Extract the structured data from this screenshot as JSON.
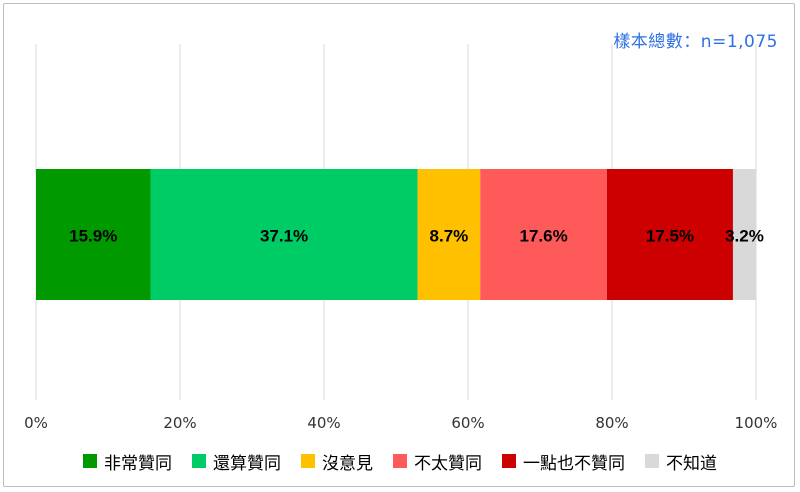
{
  "sample_note": "樣本總數：n=1,075",
  "chart_data": {
    "type": "bar",
    "orientation": "horizontal-stacked-100",
    "xlim": [
      0,
      100
    ],
    "x_ticks": [
      "0%",
      "20%",
      "40%",
      "60%",
      "80%",
      "100%"
    ],
    "grid": true,
    "legend_position": "bottom",
    "series": [
      {
        "name": "非常贊同",
        "value": 15.9,
        "label": "15.9%",
        "color": "#009a00"
      },
      {
        "name": "還算贊同",
        "value": 37.1,
        "label": "37.1%",
        "color": "#00cc66"
      },
      {
        "name": "沒意見",
        "value": 8.7,
        "label": "8.7%",
        "color": "#ffc000"
      },
      {
        "name": "不太贊同",
        "value": 17.6,
        "label": "17.6%",
        "color": "#ff5a5a"
      },
      {
        "name": "一點也不贊同",
        "value": 17.5,
        "label": "17.5%",
        "color": "#cc0000"
      },
      {
        "name": "不知道",
        "value": 3.2,
        "label": "3.2%",
        "color": "#d9d9d9"
      }
    ]
  }
}
